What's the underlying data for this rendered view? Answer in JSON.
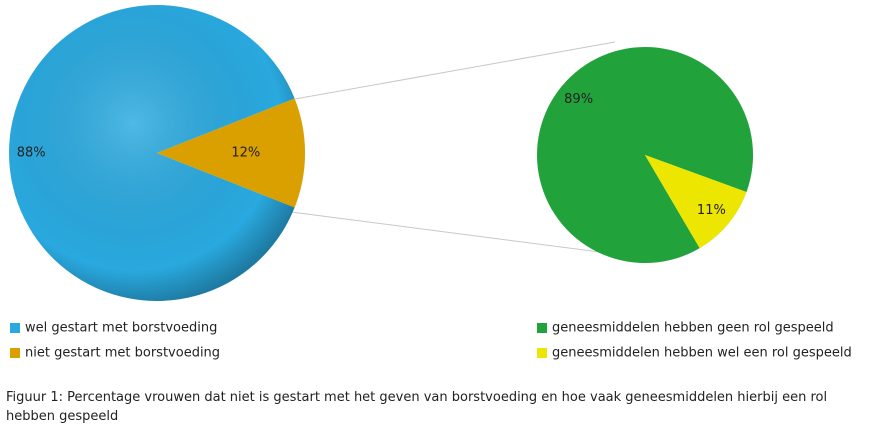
{
  "chart_data": [
    {
      "type": "pie",
      "categories": [
        "wel gestart met borstvoeding",
        "niet gestart met borstvoeding"
      ],
      "values": [
        88,
        12
      ],
      "value_labels": [
        "88%",
        "12%"
      ],
      "colors": [
        "#29a9df",
        "#d9a000"
      ]
    },
    {
      "type": "pie",
      "categories": [
        "geneesmiddelen hebben geen rol gespeeld",
        "geneesmiddelen hebben wel een rol gespeeld"
      ],
      "values": [
        89,
        11
      ],
      "value_labels": [
        "89%",
        "11%"
      ],
      "colors": [
        "#22a23a",
        "#ece600"
      ]
    }
  ],
  "caption": "Figuur 1: Percentage vrouwen dat niet is gestart met het geven van borstvoeding en hoe vaak geneesmiddelen hierbij een rol hebben gespeeld"
}
